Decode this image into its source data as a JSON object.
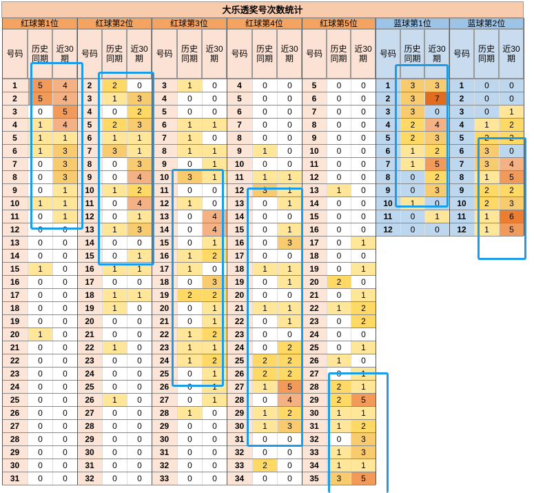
{
  "title": "大乐透奖号次数统计",
  "headers": {
    "num": "号码",
    "hist": "历史\n同期",
    "recent": "近30\n期"
  },
  "groups": [
    {
      "name": "红球第1位",
      "color": "red",
      "rows": [
        [
          1,
          5,
          4
        ],
        [
          2,
          5,
          4
        ],
        [
          3,
          0,
          5
        ],
        [
          4,
          1,
          4
        ],
        [
          5,
          1,
          1
        ],
        [
          6,
          1,
          3
        ],
        [
          7,
          0,
          3
        ],
        [
          8,
          0,
          3
        ],
        [
          9,
          0,
          1
        ],
        [
          10,
          1,
          1
        ],
        [
          11,
          0,
          1
        ],
        [
          12,
          0,
          0
        ],
        [
          13,
          0,
          0
        ],
        [
          14,
          0,
          0
        ],
        [
          15,
          1,
          0
        ],
        [
          16,
          0,
          0
        ],
        [
          17,
          0,
          0
        ],
        [
          18,
          0,
          0
        ],
        [
          19,
          0,
          0
        ],
        [
          20,
          1,
          0
        ],
        [
          21,
          0,
          0
        ],
        [
          22,
          0,
          0
        ],
        [
          23,
          0,
          0
        ],
        [
          24,
          0,
          0
        ],
        [
          25,
          0,
          0
        ],
        [
          26,
          0,
          0
        ],
        [
          27,
          0,
          0
        ],
        [
          28,
          0,
          0
        ],
        [
          29,
          0,
          0
        ],
        [
          30,
          0,
          0
        ],
        [
          31,
          0,
          0
        ]
      ]
    },
    {
      "name": "红球第2位",
      "color": "red",
      "rows": [
        [
          2,
          2,
          0
        ],
        [
          3,
          1,
          3
        ],
        [
          4,
          0,
          2
        ],
        [
          5,
          2,
          3
        ],
        [
          6,
          1,
          1
        ],
        [
          7,
          3,
          1
        ],
        [
          8,
          0,
          3
        ],
        [
          9,
          0,
          4
        ],
        [
          10,
          1,
          2
        ],
        [
          11,
          0,
          4
        ],
        [
          12,
          0,
          1
        ],
        [
          13,
          1,
          3
        ],
        [
          14,
          0,
          0
        ],
        [
          15,
          0,
          1
        ],
        [
          16,
          1,
          1
        ],
        [
          17,
          0,
          0
        ],
        [
          18,
          1,
          1
        ],
        [
          19,
          1,
          0
        ],
        [
          20,
          0,
          0
        ],
        [
          21,
          0,
          0
        ],
        [
          22,
          1,
          0
        ],
        [
          23,
          0,
          0
        ],
        [
          24,
          0,
          0
        ],
        [
          25,
          0,
          0
        ],
        [
          26,
          1,
          0
        ],
        [
          27,
          0,
          0
        ],
        [
          28,
          0,
          0
        ],
        [
          29,
          0,
          0
        ],
        [
          30,
          0,
          0
        ],
        [
          31,
          0,
          0
        ],
        [
          32,
          0,
          0
        ]
      ]
    },
    {
      "name": "红球第3位",
      "color": "red",
      "rows": [
        [
          3,
          1,
          0
        ],
        [
          4,
          0,
          0
        ],
        [
          5,
          0,
          0
        ],
        [
          6,
          1,
          1
        ],
        [
          7,
          1,
          0
        ],
        [
          8,
          1,
          1
        ],
        [
          9,
          0,
          1
        ],
        [
          10,
          3,
          1
        ],
        [
          11,
          0,
          0
        ],
        [
          12,
          1,
          0
        ],
        [
          13,
          0,
          4
        ],
        [
          14,
          0,
          4
        ],
        [
          15,
          0,
          1
        ],
        [
          16,
          1,
          2
        ],
        [
          17,
          1,
          0
        ],
        [
          18,
          0,
          3
        ],
        [
          19,
          2,
          2
        ],
        [
          20,
          0,
          1
        ],
        [
          21,
          0,
          1
        ],
        [
          22,
          1,
          2
        ],
        [
          23,
          1,
          1
        ],
        [
          24,
          1,
          2
        ],
        [
          25,
          0,
          1
        ],
        [
          26,
          0,
          1
        ],
        [
          27,
          0,
          1
        ],
        [
          28,
          1,
          0
        ],
        [
          29,
          0,
          0
        ],
        [
          30,
          0,
          0
        ],
        [
          31,
          0,
          0
        ],
        [
          32,
          0,
          0
        ],
        [
          33,
          0,
          0
        ]
      ]
    },
    {
      "name": "红球第4位",
      "color": "red",
      "rows": [
        [
          4,
          0,
          0
        ],
        [
          5,
          0,
          0
        ],
        [
          6,
          0,
          0
        ],
        [
          7,
          0,
          0
        ],
        [
          8,
          0,
          0
        ],
        [
          9,
          1,
          0
        ],
        [
          10,
          0,
          0
        ],
        [
          11,
          1,
          1
        ],
        [
          12,
          3,
          1
        ],
        [
          13,
          0,
          1
        ],
        [
          14,
          0,
          0
        ],
        [
          15,
          0,
          1
        ],
        [
          16,
          0,
          3
        ],
        [
          17,
          0,
          0
        ],
        [
          18,
          1,
          1
        ],
        [
          19,
          0,
          1
        ],
        [
          20,
          0,
          0
        ],
        [
          21,
          1,
          1
        ],
        [
          22,
          0,
          1
        ],
        [
          23,
          0,
          0
        ],
        [
          24,
          0,
          2
        ],
        [
          25,
          2,
          2
        ],
        [
          26,
          2,
          2
        ],
        [
          27,
          1,
          5
        ],
        [
          28,
          0,
          4
        ],
        [
          29,
          1,
          2
        ],
        [
          30,
          1,
          3
        ],
        [
          31,
          0,
          0
        ],
        [
          32,
          0,
          0
        ],
        [
          33,
          2,
          0
        ],
        [
          34,
          0,
          0
        ]
      ]
    },
    {
      "name": "红球第5位",
      "color": "red",
      "rows": [
        [
          5,
          0,
          0
        ],
        [
          6,
          0,
          0
        ],
        [
          7,
          0,
          0
        ],
        [
          8,
          0,
          0
        ],
        [
          9,
          0,
          0
        ],
        [
          10,
          0,
          0
        ],
        [
          11,
          0,
          0
        ],
        [
          12,
          0,
          0
        ],
        [
          13,
          1,
          0
        ],
        [
          14,
          0,
          0
        ],
        [
          15,
          0,
          0
        ],
        [
          16,
          0,
          0
        ],
        [
          17,
          0,
          1
        ],
        [
          18,
          0,
          0
        ],
        [
          19,
          0,
          1
        ],
        [
          20,
          2,
          0
        ],
        [
          21,
          0,
          1
        ],
        [
          22,
          1,
          2
        ],
        [
          23,
          0,
          2
        ],
        [
          24,
          0,
          0
        ],
        [
          25,
          0,
          1
        ],
        [
          26,
          1,
          0
        ],
        [
          27,
          0,
          1
        ],
        [
          28,
          2,
          1
        ],
        [
          29,
          2,
          5
        ],
        [
          30,
          1,
          1
        ],
        [
          31,
          1,
          2
        ],
        [
          32,
          0,
          3
        ],
        [
          33,
          1,
          3
        ],
        [
          34,
          1,
          1
        ],
        [
          35,
          3,
          5
        ]
      ]
    },
    {
      "name": "蓝球第1位",
      "color": "blue",
      "rows": [
        [
          1,
          3,
          3
        ],
        [
          2,
          3,
          7
        ],
        [
          3,
          3,
          0
        ],
        [
          4,
          2,
          4
        ],
        [
          5,
          2,
          3
        ],
        [
          6,
          1,
          2
        ],
        [
          7,
          1,
          5
        ],
        [
          8,
          0,
          2
        ],
        [
          9,
          0,
          3
        ],
        [
          10,
          1,
          0
        ],
        [
          11,
          0,
          1
        ],
        [
          12,
          0,
          0
        ]
      ]
    },
    {
      "name": "蓝球第2位",
      "color": "blue",
      "rows": [
        [
          1,
          0,
          0
        ],
        [
          2,
          0,
          0
        ],
        [
          3,
          0,
          1
        ],
        [
          4,
          1,
          2
        ],
        [
          5,
          2,
          2
        ],
        [
          6,
          3,
          0
        ],
        [
          7,
          3,
          4
        ],
        [
          8,
          1,
          5
        ],
        [
          9,
          2,
          2
        ],
        [
          10,
          2,
          3
        ],
        [
          11,
          1,
          6
        ],
        [
          12,
          1,
          5
        ]
      ]
    }
  ],
  "colors": {
    "title_bg": "#f8cbad",
    "red_header": "#f4a460",
    "red_subheader": "#fbe2d5",
    "red_numcol": "#fce4d6",
    "blue_header": "#9dc3e6",
    "blue_subheader": "#c9dcef",
    "blue_numcol": "#bdd7ee",
    "blue_body": "#bdd7ee",
    "heat": [
      "#ffffff",
      "#ffe699",
      "#ffd966",
      "#f8cb6f",
      "#f4b183",
      "#f19a5a",
      "#ed7d31",
      "#e06c1f"
    ],
    "highlight": "#1a9ce8"
  }
}
